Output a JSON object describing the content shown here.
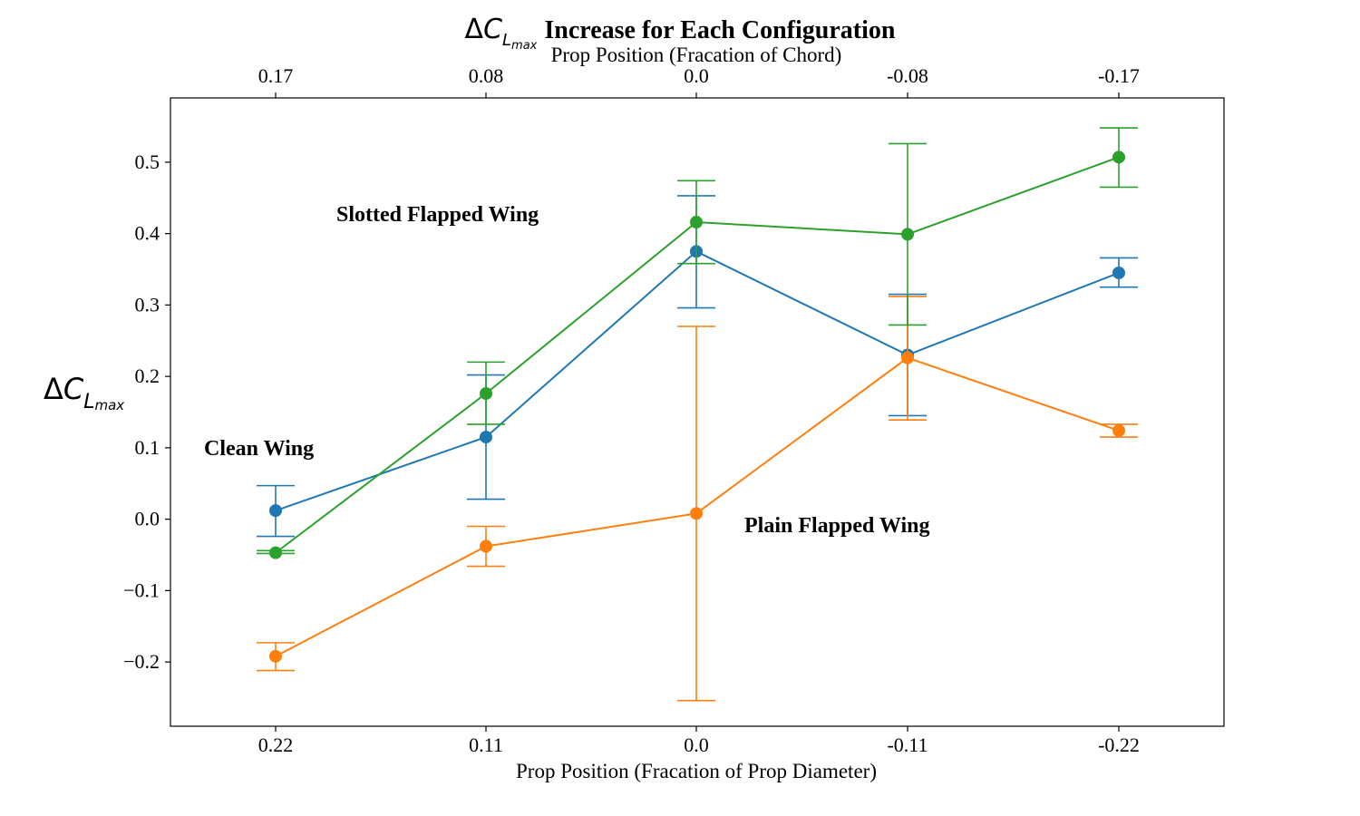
{
  "chart_data": {
    "type": "line",
    "title": {
      "symbol_delta": "Δ",
      "symbol_c": "C",
      "symbol_sub_l": "L",
      "symbol_sub_max": "max",
      "text": "Increase for Each Configuration"
    },
    "ylabel": {
      "symbol_delta": "Δ",
      "symbol_c": "C",
      "symbol_sub_l": "L",
      "symbol_sub_max": "max"
    },
    "xlabel": "Prop Position (Fracation of Prop Diameter)",
    "x2label": "Prop Position (Fracation of Chord)",
    "categories": [
      "0.22",
      "0.11",
      "0.0",
      "-0.11",
      "-0.22"
    ],
    "top_categories": [
      "0.17",
      "0.08",
      "0.0",
      "-0.08",
      "-0.17"
    ],
    "ylim": [
      -0.29,
      0.59
    ],
    "yticks": [
      -0.2,
      -0.1,
      0.0,
      0.1,
      0.2,
      0.3,
      0.4,
      0.5
    ],
    "ytick_labels": [
      "−0.2",
      "−0.1",
      "0.0",
      "0.1",
      "0.2",
      "0.3",
      "0.4",
      "0.5"
    ],
    "grid": false,
    "series": [
      {
        "name": "Clean Wing",
        "color": "#1f77b4",
        "values": [
          0.012,
          0.115,
          0.375,
          0.23,
          0.345
        ],
        "err_low": [
          -0.024,
          0.028,
          0.296,
          0.145,
          0.325
        ],
        "err_high": [
          0.047,
          0.202,
          0.453,
          0.315,
          0.366
        ]
      },
      {
        "name": "Plain Flapped Wing",
        "color": "#ff7f0e",
        "values": [
          -0.192,
          -0.038,
          0.008,
          0.226,
          0.124
        ],
        "err_low": [
          -0.212,
          -0.066,
          -0.254,
          0.139,
          0.115
        ],
        "err_high": [
          -0.173,
          -0.01,
          0.27,
          0.312,
          0.133
        ]
      },
      {
        "name": "Slotted Flapped Wing",
        "color": "#2ca02c",
        "values": [
          -0.047,
          0.176,
          0.416,
          0.399,
          0.507
        ],
        "err_low": [
          -0.048,
          0.133,
          0.358,
          0.272,
          0.465
        ],
        "err_high": [
          -0.044,
          0.22,
          0.474,
          0.526,
          0.548
        ]
      }
    ]
  }
}
